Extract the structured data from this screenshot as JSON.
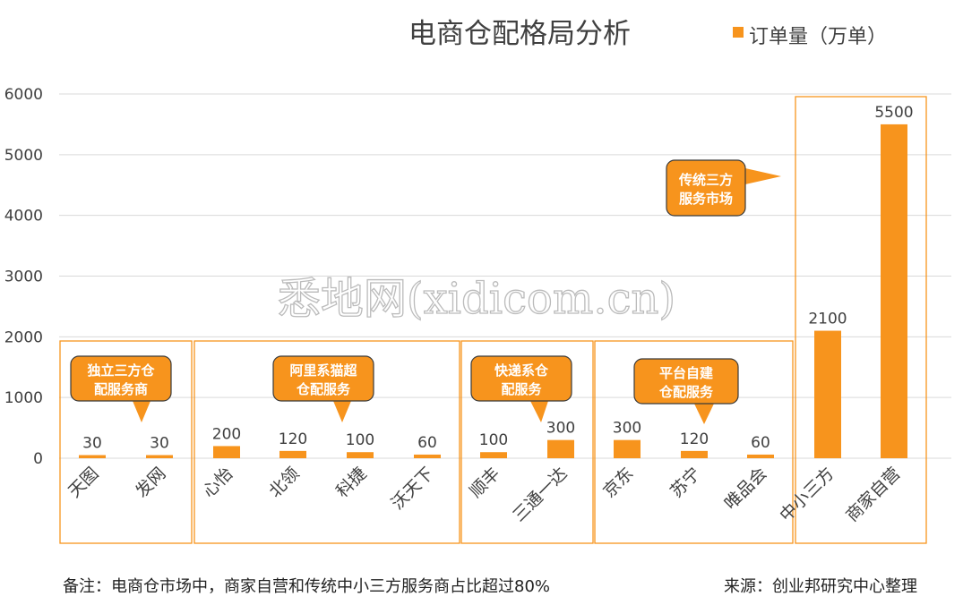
{
  "chart_data": {
    "type": "bar",
    "title": "电商仓配格局分析",
    "legend": {
      "label": "订单量（万单）",
      "position": "top-right"
    },
    "categories": [
      "天图",
      "发网",
      "心怡",
      "北领",
      "科捷",
      "沃天下",
      "顺丰",
      "三通一达",
      "京东",
      "苏宁",
      "唯品会",
      "中小三方",
      "商家自营"
    ],
    "series": [
      {
        "name": "订单量（万单）",
        "values": [
          30,
          30,
          200,
          120,
          100,
          60,
          100,
          300,
          300,
          120,
          60,
          2100,
          5500
        ]
      }
    ],
    "data_labels": [
      "30",
      "30",
      "200",
      "120",
      "100",
      "60",
      "100",
      "300",
      "300",
      "120",
      "60",
      "2100",
      "5500"
    ],
    "y_ticks": [
      "0",
      "1000",
      "2000",
      "3000",
      "4000",
      "5000",
      "6000"
    ],
    "ylim": [
      0,
      6000
    ],
    "grid": true,
    "bar_color": "#F7941D",
    "group_border_color": "#F7941D",
    "groups": [
      {
        "label": "独立三方仓配服务商",
        "start": 0,
        "end": 1
      },
      {
        "label": "阿里系猫超仓配服务",
        "start": 2,
        "end": 5
      },
      {
        "label": "快递系仓配服务",
        "start": 6,
        "end": 7
      },
      {
        "label": "平台自建仓配服务",
        "start": 8,
        "end": 10
      },
      {
        "label": "传统三方服务市场",
        "start": 11,
        "end": 12
      }
    ]
  },
  "watermark": "悉地网(xidicom.cn)",
  "footnote": {
    "note": "备注：电商仓市场中，商家自营和传统中小三方服务商占比超过80%",
    "source": "来源：创业邦研究中心整理"
  }
}
